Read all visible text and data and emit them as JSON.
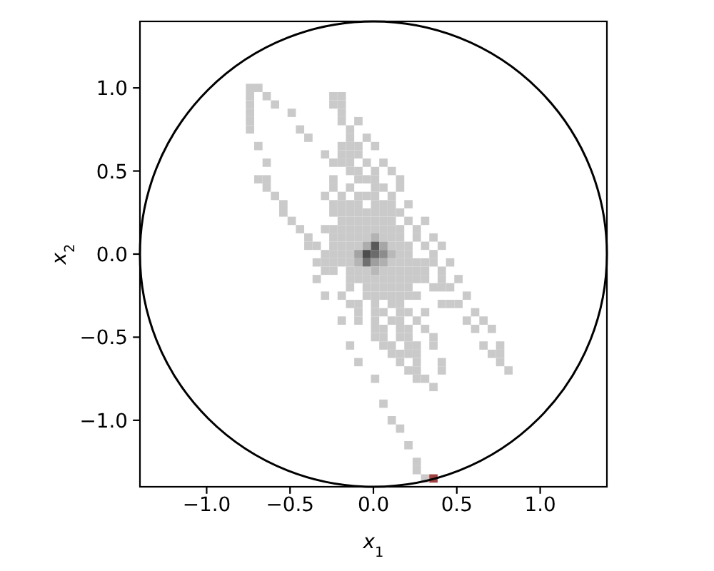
{
  "chart_data": {
    "type": "scatter",
    "xlabel": "x$_{1}$",
    "ylabel": "x$_{2}$",
    "marker": "square",
    "xlim": [
      -1.4,
      1.4
    ],
    "ylim": [
      -1.4,
      1.4
    ],
    "xticks": [
      {
        "value": -1,
        "label": "−1.0"
      },
      {
        "value": -0.5,
        "label": "−0.5"
      },
      {
        "value": 0,
        "label": "0.0"
      },
      0.5,
      {
        "value": 1,
        "label": "1.0"
      }
    ],
    "yticks": [
      {
        "value": -1,
        "label": "−1.0"
      },
      {
        "value": -0.5,
        "label": "−0.5"
      },
      {
        "value": 0,
        "label": "0.0"
      },
      0.5,
      {
        "value": 1,
        "label": "1.0"
      }
    ],
    "series": [
      {
        "color": "#cacaca",
        "x": [
          -0.74,
          -0.69,
          -0.74,
          -0.64,
          -0.24,
          -0.19,
          -0.74,
          -0.59,
          -0.24,
          -0.19,
          -0.74,
          -0.49,
          -0.19,
          -0.74,
          -0.19,
          -0.09,
          -0.74,
          -0.44,
          -0.14,
          -0.39,
          -0.14,
          -0.04,
          -0.69,
          -0.19,
          -0.14,
          -0.09,
          0.01,
          -0.29,
          -0.19,
          -0.14,
          -0.09,
          -0.64,
          -0.24,
          -0.19,
          -0.14,
          -0.04,
          0.06,
          -0.14,
          -0.09,
          0.01,
          0.11,
          -0.69,
          -0.64,
          -0.24,
          -0.09,
          -0.04,
          0.01,
          0.16,
          -0.64,
          -0.24,
          -0.14,
          0.01,
          0.06,
          0.16,
          -0.59,
          -0.29,
          -0.19,
          -0.09,
          -0.04,
          0.01,
          0.11,
          -0.54,
          -0.24,
          -0.19,
          -0.14,
          -0.09,
          0.01,
          0.06,
          0.11,
          0.21,
          -0.54,
          -0.24,
          -0.19,
          -0.14,
          -0.09,
          -0.04,
          0.01,
          0.06,
          0.11,
          0.16,
          -0.49,
          -0.19,
          -0.14,
          -0.09,
          -0.04,
          0.01,
          0.06,
          0.11,
          0.21,
          0.31,
          -0.44,
          -0.29,
          -0.24,
          -0.19,
          -0.14,
          -0.09,
          -0.04,
          0.01,
          0.06,
          0.11,
          0.16,
          0.26,
          -0.39,
          -0.24,
          -0.19,
          -0.14,
          -0.09,
          -0.04,
          0.06,
          0.11,
          0.16,
          0.26,
          0.36,
          -0.39,
          -0.34,
          -0.24,
          -0.19,
          -0.14,
          -0.09,
          0.11,
          0.16,
          0.21,
          0.31,
          0.41,
          -0.29,
          -0.24,
          -0.19,
          -0.14,
          0.16,
          0.21,
          0.36,
          -0.34,
          -0.29,
          -0.24,
          -0.19,
          -0.14,
          0.11,
          0.16,
          0.21,
          0.26,
          0.31,
          0.36,
          0.46,
          -0.29,
          -0.24,
          -0.14,
          -0.09,
          -0.04,
          0.06,
          0.11,
          0.16,
          0.21,
          0.26,
          0.31,
          0.41,
          -0.34,
          -0.14,
          -0.09,
          -0.04,
          0.01,
          0.06,
          0.11,
          0.16,
          0.21,
          0.26,
          0.31,
          0.41,
          0.51,
          -0.14,
          -0.04,
          0.01,
          0.06,
          0.11,
          0.16,
          0.21,
          0.36,
          0.41,
          0.46,
          -0.29,
          -0.19,
          -0.04,
          0.01,
          0.06,
          0.11,
          0.16,
          0.21,
          0.26,
          0.56,
          -0.14,
          -0.09,
          0.01,
          0.11,
          0.16,
          0.41,
          0.46,
          0.51,
          -0.09,
          0.01,
          0.06,
          0.16,
          0.21,
          0.31,
          0.61,
          -0.19,
          -0.09,
          0.01,
          0.11,
          0.16,
          0.26,
          0.56,
          0.66,
          0.01,
          0.06,
          0.16,
          0.21,
          0.31,
          0.61,
          0.71,
          0.01,
          0.06,
          0.16,
          0.21,
          0.36,
          -0.14,
          0.06,
          0.11,
          0.21,
          0.26,
          0.36,
          0.66,
          0.76,
          0.11,
          0.16,
          0.21,
          0.26,
          0.71,
          0.76,
          -0.09,
          0.16,
          0.26,
          0.41,
          0.76,
          0.21,
          0.26,
          0.41,
          0.81,
          0.01,
          0.26,
          0.31,
          0.36,
          0.06,
          0.11,
          0.16,
          0.21,
          0.26,
          0.26,
          0.31
        ],
        "values": [
          1,
          1,
          0.95,
          0.95,
          0.95,
          0.95,
          0.9,
          0.9,
          0.9,
          0.9,
          0.85,
          0.85,
          0.85,
          0.8,
          0.8,
          0.8,
          0.75,
          0.75,
          0.75,
          0.7,
          0.7,
          0.7,
          0.65,
          0.65,
          0.65,
          0.65,
          0.65,
          0.6,
          0.6,
          0.6,
          0.6,
          0.55,
          0.55,
          0.55,
          0.55,
          0.55,
          0.55,
          0.5,
          0.5,
          0.5,
          0.5,
          0.45,
          0.45,
          0.45,
          0.45,
          0.45,
          0.45,
          0.45,
          0.4,
          0.4,
          0.4,
          0.4,
          0.4,
          0.4,
          0.35,
          0.35,
          0.35,
          0.35,
          0.35,
          0.35,
          0.35,
          0.3,
          0.3,
          0.3,
          0.3,
          0.3,
          0.3,
          0.3,
          0.3,
          0.3,
          0.25,
          0.25,
          0.25,
          0.25,
          0.25,
          0.25,
          0.25,
          0.25,
          0.25,
          0.25,
          0.2,
          0.2,
          0.2,
          0.2,
          0.2,
          0.2,
          0.2,
          0.2,
          0.2,
          0.2,
          0.15,
          0.15,
          0.15,
          0.15,
          0.15,
          0.15,
          0.15,
          0.15,
          0.15,
          0.15,
          0.15,
          0.15,
          0.1,
          0.1,
          0.1,
          0.1,
          0.1,
          0.1,
          0.1,
          0.1,
          0.1,
          0.1,
          0.1,
          0.05,
          0.05,
          0.05,
          0.05,
          0.05,
          0.05,
          0.05,
          0.05,
          0.05,
          0.05,
          0.05,
          0,
          0,
          0,
          0,
          0,
          0,
          0,
          -0.05,
          -0.05,
          -0.05,
          -0.05,
          -0.05,
          -0.05,
          -0.05,
          -0.05,
          -0.05,
          -0.05,
          -0.05,
          -0.05,
          -0.1,
          -0.1,
          -0.1,
          -0.1,
          -0.1,
          -0.1,
          -0.1,
          -0.1,
          -0.1,
          -0.1,
          -0.1,
          -0.1,
          -0.15,
          -0.15,
          -0.15,
          -0.15,
          -0.15,
          -0.15,
          -0.15,
          -0.15,
          -0.15,
          -0.15,
          -0.15,
          -0.15,
          -0.15,
          -0.2,
          -0.2,
          -0.2,
          -0.2,
          -0.2,
          -0.2,
          -0.2,
          -0.2,
          -0.2,
          -0.2,
          -0.25,
          -0.25,
          -0.25,
          -0.25,
          -0.25,
          -0.25,
          -0.25,
          -0.25,
          -0.25,
          -0.25,
          -0.3,
          -0.3,
          -0.3,
          -0.3,
          -0.3,
          -0.3,
          -0.3,
          -0.3,
          -0.35,
          -0.35,
          -0.35,
          -0.35,
          -0.35,
          -0.35,
          -0.35,
          -0.4,
          -0.4,
          -0.4,
          -0.4,
          -0.4,
          -0.4,
          -0.4,
          -0.4,
          -0.45,
          -0.45,
          -0.45,
          -0.45,
          -0.45,
          -0.45,
          -0.45,
          -0.5,
          -0.5,
          -0.5,
          -0.5,
          -0.5,
          -0.55,
          -0.55,
          -0.55,
          -0.55,
          -0.55,
          -0.55,
          -0.55,
          -0.55,
          -0.6,
          -0.6,
          -0.6,
          -0.6,
          -0.6,
          -0.6,
          -0.65,
          -0.65,
          -0.65,
          -0.65,
          -0.65,
          -0.7,
          -0.7,
          -0.7,
          -0.7,
          -0.75,
          -0.75,
          -0.75,
          -0.8,
          -0.9,
          -1,
          -1.05,
          -1.15,
          -1.25,
          -1.3,
          -1.35
        ]
      },
      {
        "x": [
          0.01,
          -0.04,
          0.01,
          0.06,
          -0.09,
          -0.04,
          0.01,
          0.06,
          0.11,
          -0.09,
          -0.04,
          0.01,
          0.06,
          0.01,
          0.36
        ],
        "values": [
          0.1,
          0.05,
          0.05,
          0.05,
          0,
          0,
          0,
          0,
          0,
          -0.05,
          -0.05,
          -0.05,
          -0.05,
          -0.1,
          -1.35
        ],
        "colors": [
          "#b3b3b3",
          "#adadad",
          "#595959",
          "#a6a6a6",
          "#a3a3a3",
          "#4d4d4d",
          "#6b6b6b",
          "#8c8c8c",
          "#b8b8b8",
          "#b5b5b5",
          "#707070",
          "#9e9e9e",
          "#b0b0b0",
          "#b8b8b8",
          "#a0403f"
        ]
      }
    ]
  }
}
